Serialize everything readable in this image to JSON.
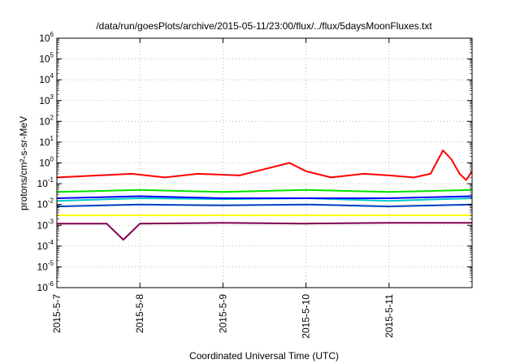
{
  "chart_data": {
    "type": "line",
    "title": "/data/run/goesPlots/archive/2015-05-11/23:00/flux/../flux/5daysMoonFluxes.txt",
    "xlabel": "Coordinated Universal Time (UTC)",
    "ylabel": "protons/cm²-s-sr-MeV",
    "yscale": "log",
    "ylim": [
      1e-06,
      1000000.0
    ],
    "y_ticks": [
      {
        "base": "10",
        "exp": "-6"
      },
      {
        "base": "10",
        "exp": "-5"
      },
      {
        "base": "10",
        "exp": "-4"
      },
      {
        "base": "10",
        "exp": "-3"
      },
      {
        "base": "10",
        "exp": "-2"
      },
      {
        "base": "10",
        "exp": "-1"
      },
      {
        "base": "10",
        "exp": "0"
      },
      {
        "base": "10",
        "exp": "1"
      },
      {
        "base": "10",
        "exp": "2"
      },
      {
        "base": "10",
        "exp": "3"
      },
      {
        "base": "10",
        "exp": "4"
      },
      {
        "base": "10",
        "exp": "5"
      },
      {
        "base": "10",
        "exp": "6"
      }
    ],
    "x_ticks": [
      "2015-5-7",
      "2015-5-8",
      "2015-5-9",
      "2015-5-10",
      "2015-5-11"
    ],
    "xlim_days": [
      0,
      5
    ],
    "grid": true,
    "legend": "none",
    "series": [
      {
        "color": "#ff0000",
        "x_days": [
          0,
          0.5,
          0.9,
          1.3,
          1.7,
          2.2,
          2.5,
          2.8,
          3.0,
          3.3,
          3.7,
          4.0,
          4.3,
          4.5,
          4.65,
          4.75,
          4.85,
          4.93,
          5.0
        ],
        "values": [
          0.2,
          0.25,
          0.3,
          0.2,
          0.3,
          0.25,
          0.5,
          1.0,
          0.4,
          0.2,
          0.3,
          0.25,
          0.2,
          0.3,
          4.0,
          1.5,
          0.3,
          0.15,
          0.4
        ]
      },
      {
        "color": "#00e000",
        "x_days": [
          0,
          1,
          2,
          3,
          4,
          5
        ],
        "values": [
          0.04,
          0.05,
          0.04,
          0.05,
          0.04,
          0.05
        ]
      },
      {
        "color": "#00c8c8",
        "x_days": [
          0,
          1,
          2,
          3,
          4,
          5
        ],
        "values": [
          0.015,
          0.02,
          0.018,
          0.02,
          0.015,
          0.02
        ]
      },
      {
        "color": "#0000ff",
        "x_days": [
          0,
          1,
          2,
          3,
          4,
          5
        ],
        "values": [
          0.02,
          0.025,
          0.02,
          0.02,
          0.02,
          0.025
        ]
      },
      {
        "color": "#0040c0",
        "x_days": [
          0,
          1,
          2,
          3,
          4,
          5
        ],
        "values": [
          0.008,
          0.01,
          0.009,
          0.01,
          0.008,
          0.01
        ]
      },
      {
        "color": "#ffff00",
        "x_days": [
          0,
          1,
          2,
          3,
          4,
          5
        ],
        "values": [
          0.003,
          0.003,
          0.003,
          0.003,
          0.003,
          0.003
        ]
      },
      {
        "color": "#800050",
        "x_days": [
          0,
          0.6,
          0.8,
          1.0,
          2.0,
          3.0,
          4.0,
          5.0
        ],
        "values": [
          0.0012,
          0.0012,
          0.0002,
          0.0012,
          0.0013,
          0.0012,
          0.0013,
          0.0013
        ]
      }
    ]
  }
}
